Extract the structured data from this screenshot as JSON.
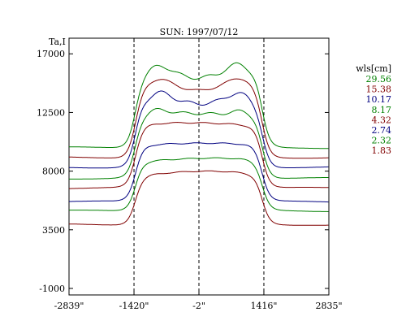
{
  "chart_data": {
    "type": "line",
    "title": "SUN: 1997/07/12",
    "ylabel": "Ta,I",
    "xlabel": "",
    "xlim": [
      -2839,
      2835
    ],
    "ylim": [
      -1500,
      18200
    ],
    "x_ticks": [
      {
        "value": -2839,
        "label": "-2839\""
      },
      {
        "value": -1420,
        "label": "-1420\""
      },
      {
        "value": -2,
        "label": "-2\""
      },
      {
        "value": 1416,
        "label": "1416\""
      },
      {
        "value": 2835,
        "label": "2835\""
      }
    ],
    "y_ticks": [
      {
        "value": -1000,
        "label": "-1000"
      },
      {
        "value": 3500,
        "label": "3500"
      },
      {
        "value": 8000,
        "label": "8000"
      },
      {
        "value": 12500,
        "label": "12500"
      },
      {
        "value": 17000,
        "label": "17000"
      }
    ],
    "vlines": [
      -1420,
      -2,
      1416
    ],
    "legend_title": "wls[cm]",
    "legend_position": "right",
    "series": [
      {
        "name": "29.56",
        "color": "#008000",
        "base": 9800,
        "top": 16200,
        "shape": "limb"
      },
      {
        "name": "15.38",
        "color": "#800000",
        "base": 9050,
        "top": 15150,
        "shape": "limb"
      },
      {
        "name": "10.17",
        "color": "#000080",
        "base": 8300,
        "top": 14050,
        "shape": "limb"
      },
      {
        "name": "8.17",
        "color": "#008000",
        "base": 7450,
        "top": 12850,
        "shape": "mixed"
      },
      {
        "name": "4.32",
        "color": "#800000",
        "base": 6700,
        "top": 11750,
        "shape": "flat"
      },
      {
        "name": "2.74",
        "color": "#000080",
        "base": 5650,
        "top": 10200,
        "shape": "flat"
      },
      {
        "name": "2.32",
        "color": "#008000",
        "base": 4950,
        "top": 9000,
        "shape": "flat"
      },
      {
        "name": "1.83",
        "color": "#800000",
        "base": 3900,
        "top": 7950,
        "shape": "flat"
      }
    ]
  }
}
